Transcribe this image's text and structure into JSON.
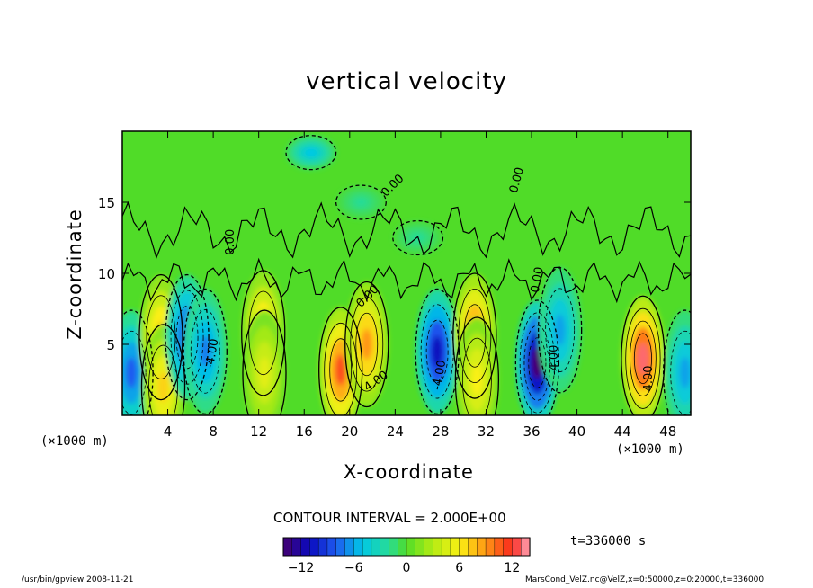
{
  "chart_data": {
    "type": "heatmap",
    "title": "vertical velocity",
    "xlabel": "X-coordinate",
    "ylabel": "Z-coordinate",
    "x_unit": "(×1000 m)",
    "x_ticks": [
      4,
      8,
      12,
      16,
      20,
      24,
      28,
      32,
      36,
      40,
      44,
      48
    ],
    "y_ticks": [
      5,
      10,
      15
    ],
    "xlim": [
      0,
      50
    ],
    "ylim": [
      0,
      20
    ],
    "contour_interval_label": "CONTOUR INTERVAL = 2.000E+00",
    "contour_labels": [
      "0.00",
      "0.00",
      "0.00",
      "0.00",
      "0.00",
      "-4.00",
      "4.00",
      "-4.00",
      "-4.00",
      "4.00"
    ],
    "colorbar": {
      "range": [
        -14,
        14
      ],
      "ticks": [
        "−12",
        "−6",
        "0",
        "6",
        "12"
      ],
      "tick_values": [
        -12,
        -6,
        0,
        6,
        12
      ]
    },
    "cells": [
      {
        "x": 0.8,
        "z": 3.0,
        "w": -8
      },
      {
        "x": 3.4,
        "z": 5.5,
        "w": 8
      },
      {
        "x": 3.6,
        "z": 2.0,
        "w": 7
      },
      {
        "x": 5.7,
        "z": 5.5,
        "w": -9
      },
      {
        "x": 7.3,
        "z": 4.5,
        "w": -7
      },
      {
        "x": 12.4,
        "z": 5.8,
        "w": 8
      },
      {
        "x": 12.5,
        "z": 3.0,
        "w": 5
      },
      {
        "x": 19.2,
        "z": 3.2,
        "w": 11
      },
      {
        "x": 21.5,
        "z": 5.0,
        "w": 9
      },
      {
        "x": 27.7,
        "z": 4.5,
        "w": -11
      },
      {
        "x": 31.0,
        "z": 5.6,
        "w": 10
      },
      {
        "x": 31.2,
        "z": 2.5,
        "w": 6
      },
      {
        "x": 36.5,
        "z": 3.7,
        "w": -14
      },
      {
        "x": 38.5,
        "z": 6.0,
        "w": -6
      },
      {
        "x": 45.8,
        "z": 4.0,
        "w": 13
      },
      {
        "x": 49.5,
        "z": 3.0,
        "w": -6
      },
      {
        "x": 16.6,
        "z": 18.5,
        "w": -5
      },
      {
        "x": 21.0,
        "z": 15.0,
        "w": -2
      },
      {
        "x": 26.0,
        "z": 12.5,
        "w": -2
      }
    ]
  },
  "labels": {
    "time": "t=336000 s",
    "footer_left": "/usr/bin/gpview   2008-11-21",
    "footer_right": "MarsCond_VelZ.nc@VelZ,x=0:50000,z=0:20000,t=336000"
  }
}
